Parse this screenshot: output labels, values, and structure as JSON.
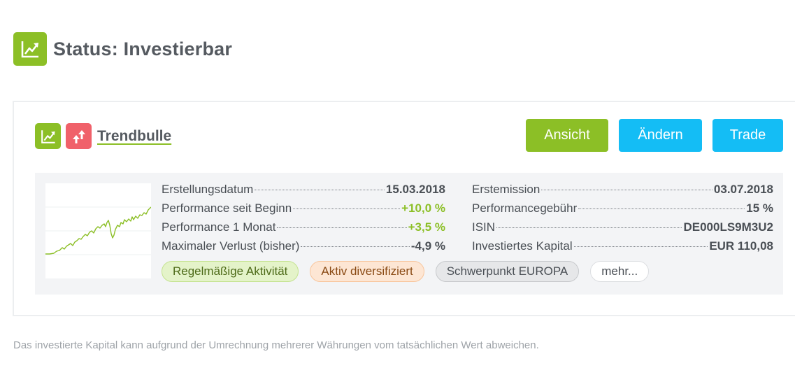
{
  "header": {
    "title": "Status: Investierbar",
    "icon": "trending-up-icon",
    "icon_color": "#8cbf26"
  },
  "wikifolio": {
    "name": "Trendbulle",
    "icons": [
      {
        "name": "trending-up-icon",
        "color": "#8cbf26"
      },
      {
        "name": "double-arrow-up-icon",
        "color": "#f0616a"
      }
    ],
    "buttons": {
      "view": {
        "label": "Ansicht",
        "color": "#8cbf26"
      },
      "edit": {
        "label": "Ändern",
        "color": "#14bdf5"
      },
      "trade": {
        "label": "Trade",
        "color": "#14bdf5"
      }
    },
    "details_left": [
      {
        "label": "Erstellungsdatum",
        "value": "15.03.2018"
      },
      {
        "label": "Performance seit Beginn",
        "value": "+10,0 %"
      },
      {
        "label": "Performance 1 Monat",
        "value": "+3,5 %"
      },
      {
        "label": "Maximaler Verlust (bisher)",
        "value": "-4,9 %"
      }
    ],
    "details_right": [
      {
        "label": "Erstemission",
        "value": "03.07.2018"
      },
      {
        "label": "Performancegebühr",
        "value": "15 %"
      },
      {
        "label": "ISIN",
        "value": "DE000LS9M3U2"
      },
      {
        "label": "Investiertes Kapital",
        "value": "EUR 110,08"
      }
    ],
    "tags": [
      {
        "label": "Regelmäßige Aktivität"
      },
      {
        "label": "Aktiv diversifiziert"
      },
      {
        "label": "Schwerpunkt EUROPA"
      },
      {
        "label": "mehr..."
      }
    ],
    "sparkline_color": "#8cbf26"
  },
  "footnote": "Das investierte Kapital kann aufgrund der Umrechnung mehrerer Währungen vom tatsächlichen Wert abweichen."
}
